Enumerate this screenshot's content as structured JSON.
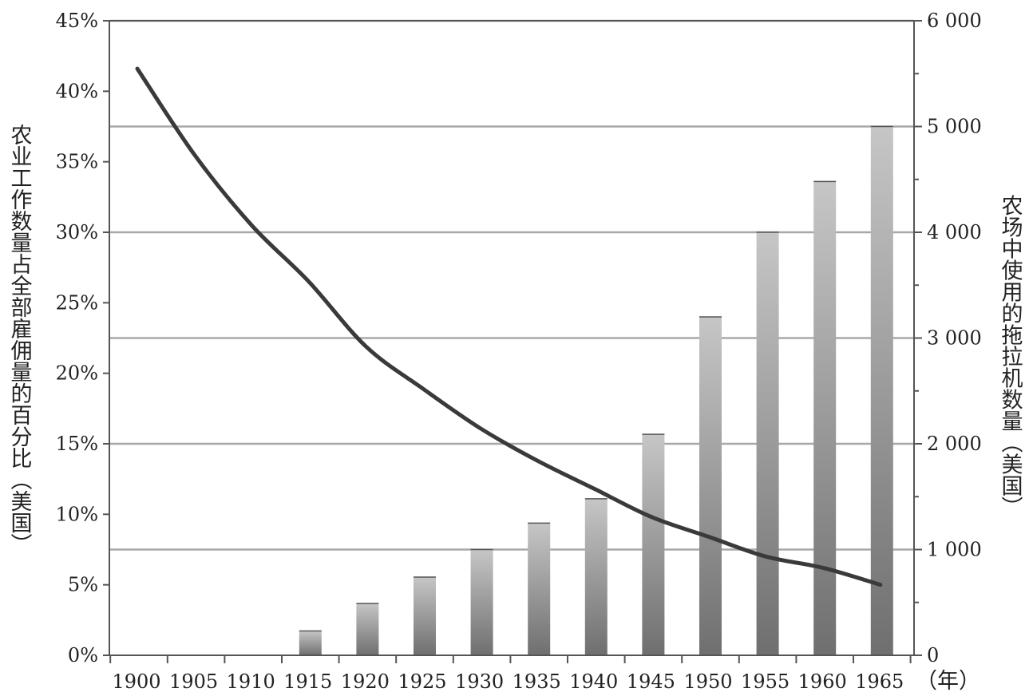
{
  "chart_data": {
    "type": "bar+line",
    "categories": [
      "1900",
      "1905",
      "1910",
      "1915",
      "1920",
      "1925",
      "1930",
      "1935",
      "1940",
      "1945",
      "1950",
      "1955",
      "1960",
      "1965"
    ],
    "series": [
      {
        "type": "line",
        "axis": "left",
        "values": [
          41.6,
          35.5,
          30.5,
          26.5,
          21.9,
          18.9,
          16.1,
          13.8,
          11.8,
          9.8,
          8.4,
          7.0,
          6.2,
          5.0
        ]
      },
      {
        "type": "bar",
        "axis": "right",
        "values": [
          0,
          0,
          0,
          230,
          490,
          740,
          1000,
          1250,
          1480,
          2090,
          3200,
          4000,
          4480,
          5000
        ]
      }
    ],
    "left_axis": {
      "label": "农业工作数量占全部雇佣量的百分比（美国）",
      "ylim": [
        0,
        45
      ],
      "ticks": [
        "0%",
        "5%",
        "10%",
        "15%",
        "20%",
        "25%",
        "30%",
        "35%",
        "40%",
        "45%"
      ]
    },
    "right_axis": {
      "label": "农场中使用的拖拉机数量（美国）",
      "ylim": [
        0,
        6000
      ],
      "ticks": [
        "0",
        "1 000",
        "2 000",
        "3 000",
        "4 000",
        "5 000",
        "6 000"
      ]
    },
    "x_unit_label": "（年）",
    "grid": true,
    "legend": "none",
    "colors": {
      "line": "#3a3a3a",
      "bar_light": "#c6c6c6",
      "bar_dark": "#6f6f6f",
      "grid": "#a8a8a8",
      "axis": "#555555"
    }
  }
}
